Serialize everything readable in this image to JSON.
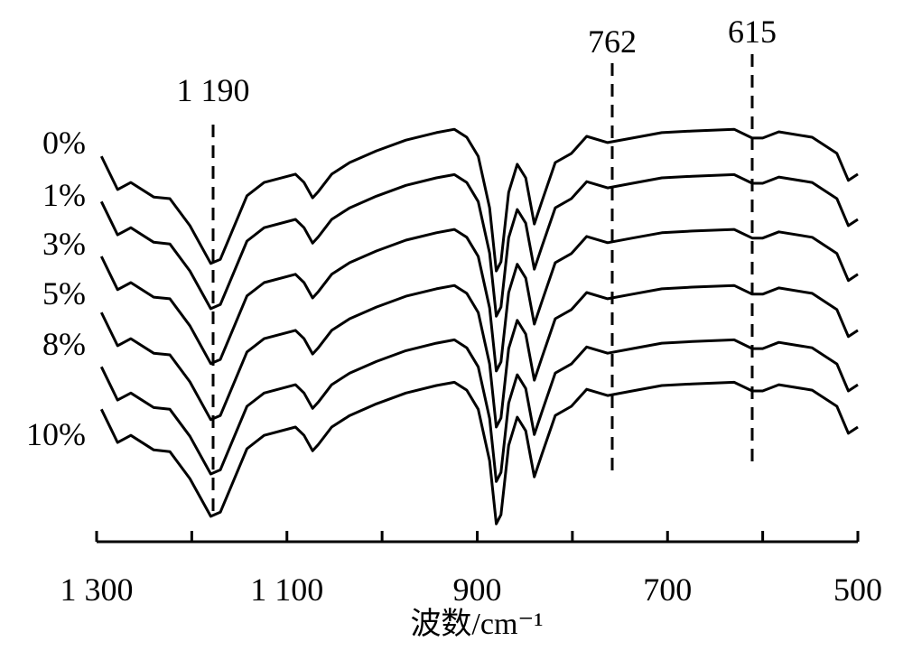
{
  "chart_data": {
    "type": "line",
    "title": "",
    "xlabel": "波数/cm⁻¹",
    "ylabel": "",
    "xlim": [
      1300,
      500
    ],
    "ylim": [
      0,
      100
    ],
    "x_ticks": [
      1300,
      1200,
      1100,
      1000,
      900,
      800,
      700,
      600,
      500
    ],
    "x_tick_labels": [
      "1 300",
      "",
      "1 100",
      "",
      "900",
      "",
      "700",
      "",
      "500"
    ],
    "y_units": "relative transmittance (a.u., stacked)",
    "grid": false,
    "profile_x": [
      1295,
      1278,
      1264,
      1240,
      1223,
      1202,
      1180,
      1170,
      1142,
      1124,
      1091,
      1082,
      1073,
      1067,
      1053,
      1034,
      1006,
      975,
      943,
      924,
      911,
      899,
      887,
      880,
      875,
      867,
      858,
      849,
      840,
      832,
      818,
      801,
      785,
      763,
      737,
      706,
      674,
      630,
      611,
      600,
      583,
      548,
      522,
      510,
      500
    ],
    "profile_y": [
      92.8,
      84.8,
      86.5,
      83.0,
      82.6,
      76.1,
      67.0,
      68.0,
      83.3,
      86.5,
      88.5,
      86.5,
      82.8,
      84.3,
      88.5,
      91.3,
      94.1,
      96.7,
      98.5,
      99.3,
      97.4,
      92.8,
      80.4,
      65.2,
      67.4,
      84.1,
      90.9,
      87.6,
      76.5,
      82.0,
      91.3,
      93.5,
      97.6,
      96.1,
      97.2,
      98.5,
      98.9,
      99.3,
      97.2,
      97.2,
      98.7,
      97.4,
      93.5,
      87.0,
      88.5
    ],
    "series": [
      {
        "name": "0%",
        "offset": 0
      },
      {
        "name": "1%",
        "offset": -10.9
      },
      {
        "name": "3%",
        "offset": -24.1
      },
      {
        "name": "5%",
        "offset": -37.6
      },
      {
        "name": "8%",
        "offset": -50.7
      },
      {
        "name": "10%",
        "offset": -60.9
      }
    ],
    "annotations": [
      {
        "label": "1 190",
        "wavenumber": 1190,
        "style": "dashed"
      },
      {
        "label": "762",
        "wavenumber": 762,
        "style": "dashed"
      },
      {
        "label": "615",
        "wavenumber": 615,
        "style": "dashed"
      }
    ]
  }
}
